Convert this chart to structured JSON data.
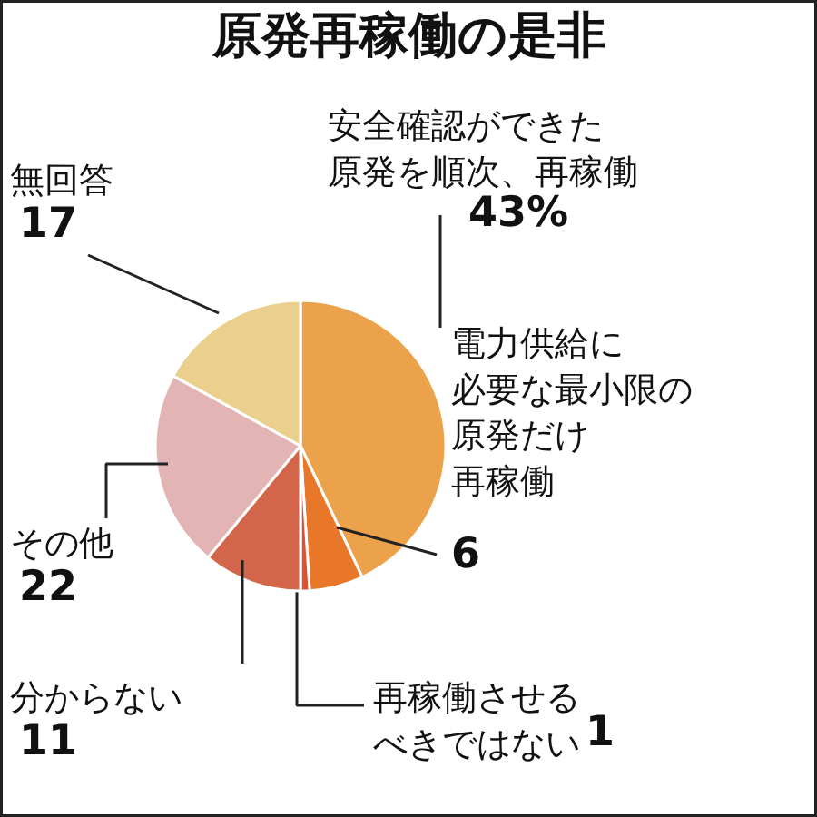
{
  "chart_data": {
    "type": "pie",
    "title": "原発再稼働の是非",
    "categories": [
      "安全確認ができた原発を順次、再稼働",
      "電力供給に必要な最小限の原発だけ再稼働",
      "再稼働させるべきではない",
      "分からない",
      "その他",
      "無回答"
    ],
    "values": [
      43,
      6,
      1,
      11,
      22,
      17
    ],
    "colors": [
      "#eba24a",
      "#e8772a",
      "#d9512e",
      "#d2654a",
      "#e3b4b4",
      "#ead08c"
    ],
    "value_labels": [
      "43%",
      "6",
      "1",
      "11",
      "22",
      "17"
    ]
  }
}
